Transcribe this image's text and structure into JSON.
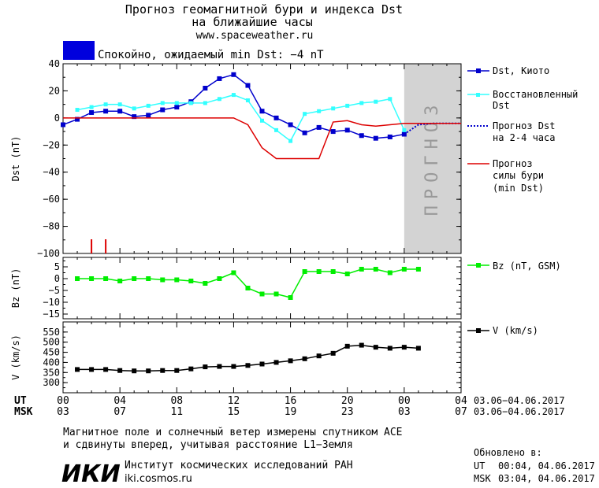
{
  "header": {
    "title_line1": "Прогноз геомагнитной бури и индекса Dst",
    "title_line2": "на ближайшие часы",
    "url": "www.spaceweather.ru",
    "status_text": "Спокойно, ожидаемый min Dst: −4 nT",
    "status_color": "#0000dd"
  },
  "colors": {
    "dst_kyoto": "#0000cc",
    "dst_restored": "#33ffff",
    "dst_forecast": "#0000cc",
    "storm_forecast": "#dd0000",
    "bz": "#00ee00",
    "speed": "#000000",
    "forecast_shade": "#d3d3d3"
  },
  "axes": {
    "x_ut_label": "UT",
    "x_msk_label": "MSK",
    "x_ut_ticks": [
      "00",
      "04",
      "08",
      "12",
      "16",
      "20",
      "00",
      "04"
    ],
    "x_msk_ticks": [
      "03",
      "07",
      "11",
      "15",
      "19",
      "23",
      "03",
      "07"
    ],
    "date_range_ut": "03.06−04.06.2017",
    "date_range_msk": "03.06−04.06.2017"
  },
  "forecast_label": "ПРОГНОЗ",
  "legends": {
    "dst_kyoto": "Dst, Киото",
    "dst_restored": [
      "Восстановленный",
      "Dst"
    ],
    "dst_forecast": [
      "Прогноз Dst",
      "на 2-4 часа"
    ],
    "storm_forecast": [
      "Прогноз",
      "силы бури",
      "(min Dst)"
    ],
    "bz": "Bz (nT, GSM)",
    "speed": "V (km/s)"
  },
  "chart_data": [
    {
      "type": "line",
      "ylabel": "Dst (nT)",
      "xlim": [
        0,
        28
      ],
      "ylim": [
        -100,
        40
      ],
      "yticks": [
        40,
        20,
        0,
        -20,
        -40,
        -60,
        -80,
        -100
      ],
      "forecast_region_x": [
        24,
        28
      ],
      "series": [
        {
          "name": "Dst, Киото",
          "x": [
            0,
            1,
            2,
            3,
            4,
            5,
            6,
            7,
            8,
            9,
            10,
            11,
            12,
            13,
            14,
            15,
            16,
            17,
            18,
            19,
            20,
            21,
            22,
            23,
            24
          ],
          "y": [
            -5,
            -1,
            4,
            5,
            5,
            1,
            2,
            6,
            8,
            12,
            22,
            29,
            32,
            24,
            5,
            0,
            -5,
            -11,
            -7,
            -10,
            -9,
            -13,
            -15,
            -14,
            -12
          ]
        },
        {
          "name": "Восстановленный Dst",
          "x": [
            1,
            2,
            3,
            4,
            5,
            6,
            7,
            8,
            9,
            10,
            11,
            12,
            13,
            14,
            15,
            16,
            17,
            18,
            19,
            20,
            21,
            22,
            23,
            24
          ],
          "y": [
            6,
            8,
            10,
            10,
            7,
            9,
            11,
            11,
            11,
            11,
            14,
            17,
            13,
            -2,
            -9,
            -17,
            3,
            5,
            7,
            9,
            11,
            12,
            14,
            -9
          ]
        },
        {
          "name": "Прогноз Dst на 2-4 часа",
          "x": [
            24,
            25,
            26,
            27,
            28
          ],
          "y": [
            -12,
            -5,
            -4,
            -4,
            -4
          ]
        },
        {
          "name": "Прогноз силы бури (min Dst)",
          "x": [
            0,
            12,
            13,
            14,
            15,
            16,
            17,
            18,
            19,
            20,
            21,
            22,
            23,
            24,
            25,
            26,
            27,
            28
          ],
          "y": [
            0,
            0,
            -5,
            -22,
            -30,
            -30,
            -30,
            -30,
            -3,
            -2,
            -5,
            -6,
            -5,
            -4,
            -4,
            -4,
            -4,
            -4
          ]
        }
      ],
      "markers": [
        {
          "x": 2,
          "y": -100
        },
        {
          "x": 3,
          "y": -100
        }
      ]
    },
    {
      "type": "line",
      "ylabel": "Bz (nT)",
      "xlim": [
        0,
        28
      ],
      "ylim": [
        -17,
        9
      ],
      "yticks": [
        5,
        0,
        -5,
        -10,
        -15
      ],
      "series": [
        {
          "name": "Bz (nT, GSM)",
          "x": [
            1,
            2,
            3,
            4,
            5,
            6,
            7,
            8,
            9,
            10,
            11,
            12,
            13,
            14,
            15,
            16,
            17,
            18,
            19,
            20,
            21,
            22,
            23,
            24,
            25
          ],
          "y": [
            0,
            0,
            0,
            -1,
            0,
            0,
            -0.5,
            -0.5,
            -1,
            -2,
            0,
            2.5,
            -4,
            -6.5,
            -6.5,
            -8,
            3,
            3,
            3,
            2,
            4,
            4,
            2.5,
            4,
            4
          ]
        }
      ]
    },
    {
      "type": "line",
      "ylabel": "V (km/s)",
      "xlim": [
        0,
        28
      ],
      "ylim": [
        250,
        600
      ],
      "yticks": [
        550,
        500,
        450,
        400,
        350,
        300
      ],
      "series": [
        {
          "name": "V (km/s)",
          "x": [
            1,
            2,
            3,
            4,
            5,
            6,
            7,
            8,
            9,
            10,
            11,
            12,
            13,
            14,
            15,
            16,
            17,
            18,
            19,
            20,
            21,
            22,
            23,
            24,
            25
          ],
          "y": [
            365,
            365,
            365,
            360,
            358,
            358,
            360,
            360,
            368,
            378,
            380,
            380,
            385,
            392,
            400,
            408,
            418,
            432,
            445,
            480,
            485,
            475,
            470,
            475,
            470
          ]
        }
      ]
    }
  ],
  "footer": {
    "note_line1": "Магнитное поле и солнечный ветер измерены спутником ACE",
    "note_line2": "и сдвинуты вперед, учитывая расстояние L1−Земля",
    "logo_text": "ИКИ",
    "institute": "Институт космических исследований РАН",
    "institute_url": "iki.cosmos.ru",
    "updated_title": "Обновлено в:",
    "updated_ut_label": "UT",
    "updated_ut_value": "00:04, 04.06.2017",
    "updated_msk_label": "MSK",
    "updated_msk_value": "03:04, 04.06.2017"
  }
}
